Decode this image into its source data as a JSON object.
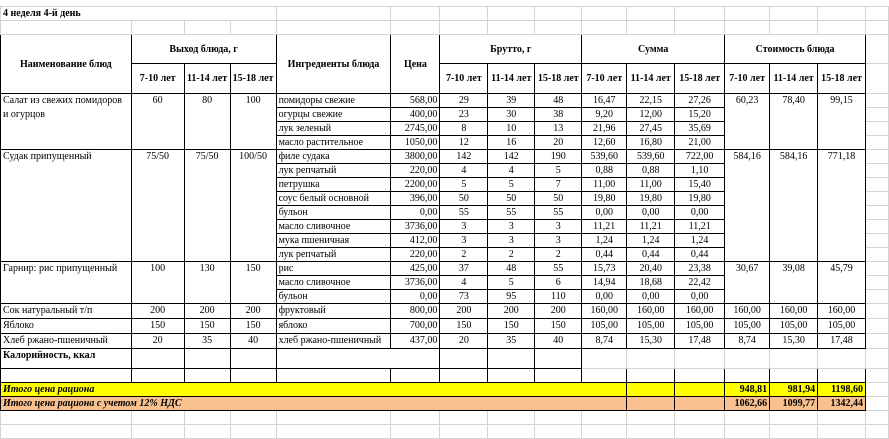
{
  "sheet_title": "4 неделя 4-й день",
  "headers": {
    "dish_name": "Наименование блюд",
    "yield": "Выход блюда, г",
    "ingredients": "Ингредиенты блюда",
    "price": "Цена",
    "brutto": "Брутто, г",
    "sum": "Сумма",
    "cost": "Стоимость блюда",
    "ages": [
      "7-10 лет",
      "11-14 лет",
      "15-18 лет"
    ]
  },
  "dishes": [
    {
      "name": "Салат из свежих помидоров и огурцов",
      "yield": [
        "60",
        "80",
        "100"
      ],
      "cost": [
        "60,23",
        "78,40",
        "99,15"
      ],
      "ingredients": [
        {
          "name": "помидоры свежие",
          "price": "568,00",
          "brutto": [
            "29",
            "39",
            "48"
          ],
          "sum": [
            "16,47",
            "22,15",
            "27,26"
          ]
        },
        {
          "name": "огурцы свежие",
          "price": "400,00",
          "brutto": [
            "23",
            "30",
            "38"
          ],
          "sum": [
            "9,20",
            "12,00",
            "15,20"
          ]
        },
        {
          "name": "лук зеленый",
          "price": "2745,00",
          "brutto": [
            "8",
            "10",
            "13"
          ],
          "sum": [
            "21,96",
            "27,45",
            "35,69"
          ]
        },
        {
          "name": "масло растительное",
          "price": "1050,00",
          "brutto": [
            "12",
            "16",
            "20"
          ],
          "sum": [
            "12,60",
            "16,80",
            "21,00"
          ]
        }
      ]
    },
    {
      "name": "Судак припущенный",
      "yield": [
        "75/50",
        "75/50",
        "100/50"
      ],
      "cost": [
        "584,16",
        "584,16",
        "771,18"
      ],
      "ingredients": [
        {
          "name": "филе судака",
          "price": "3800,00",
          "brutto": [
            "142",
            "142",
            "190"
          ],
          "sum": [
            "539,60",
            "539,60",
            "722,00"
          ]
        },
        {
          "name": "лук репчатый",
          "price": "220,00",
          "brutto": [
            "4",
            "4",
            "5"
          ],
          "sum": [
            "0,88",
            "0,88",
            "1,10"
          ]
        },
        {
          "name": "петрушка",
          "price": "2200,00",
          "brutto": [
            "5",
            "5",
            "7"
          ],
          "sum": [
            "11,00",
            "11,00",
            "15,40"
          ]
        },
        {
          "name": "соус белый основной",
          "price": "396,00",
          "brutto": [
            "50",
            "50",
            "50"
          ],
          "sum": [
            "19,80",
            "19,80",
            "19,80"
          ]
        },
        {
          "name": "бульон",
          "price": "0,00",
          "brutto": [
            "55",
            "55",
            "55"
          ],
          "sum": [
            "0,00",
            "0,00",
            "0,00"
          ]
        },
        {
          "name": "масло сливочное",
          "price": "3736,00",
          "brutto": [
            "3",
            "3",
            "3"
          ],
          "sum": [
            "11,21",
            "11,21",
            "11,21"
          ]
        },
        {
          "name": "мука пшеничная",
          "price": "412,00",
          "brutto": [
            "3",
            "3",
            "3"
          ],
          "sum": [
            "1,24",
            "1,24",
            "1,24"
          ]
        },
        {
          "name": "лук репчатый",
          "price": "220,00",
          "brutto": [
            "2",
            "2",
            "2"
          ],
          "sum": [
            "0,44",
            "0,44",
            "0,44"
          ]
        }
      ]
    },
    {
      "name": "Гарнир: рис припущенный",
      "yield": [
        "100",
        "130",
        "150"
      ],
      "cost": [
        "30,67",
        "39,08",
        "45,79"
      ],
      "ingredients": [
        {
          "name": "рис",
          "price": "425,00",
          "brutto": [
            "37",
            "48",
            "55"
          ],
          "sum": [
            "15,73",
            "20,40",
            "23,38"
          ]
        },
        {
          "name": "масло сливочное",
          "price": "3736,00",
          "brutto": [
            "4",
            "5",
            "6"
          ],
          "sum": [
            "14,94",
            "18,68",
            "22,42"
          ]
        },
        {
          "name": "бульон",
          "price": "0,00",
          "brutto": [
            "73",
            "95",
            "110"
          ],
          "sum": [
            "0,00",
            "0,00",
            "0,00"
          ]
        }
      ]
    },
    {
      "name": "Сок натуральный т/п",
      "yield": [
        "200",
        "200",
        "200"
      ],
      "cost": [
        "160,00",
        "160,00",
        "160,00"
      ],
      "ingredients": [
        {
          "name": "фруктовый",
          "price": "800,00",
          "brutto": [
            "200",
            "200",
            "200"
          ],
          "sum": [
            "160,00",
            "160,00",
            "160,00"
          ]
        }
      ]
    },
    {
      "name": "Яблоко",
      "yield": [
        "150",
        "150",
        "150"
      ],
      "cost": [
        "105,00",
        "105,00",
        "105,00"
      ],
      "ingredients": [
        {
          "name": "яблоко",
          "price": "700,00",
          "brutto": [
            "150",
            "150",
            "150"
          ],
          "sum": [
            "105,00",
            "105,00",
            "105,00"
          ]
        }
      ]
    },
    {
      "name": "Хлеб ржано-пшеничный",
      "yield": [
        "20",
        "35",
        "40"
      ],
      "cost": [
        "8,74",
        "15,30",
        "17,48"
      ],
      "ingredients": [
        {
          "name": "хлеб ржано-пшеничный",
          "price": "437,00",
          "brutto": [
            "20",
            "35",
            "40"
          ],
          "sum": [
            "8,74",
            "15,30",
            "17,48"
          ]
        }
      ]
    }
  ],
  "calories_label": "Калорийность, ккал",
  "total": {
    "label": "Итого цена рациона",
    "values": [
      "948,81",
      "981,94",
      "1198,60"
    ],
    "color": "#ffff00"
  },
  "total_vat": {
    "label": "Итого цена рациона с учетом 12% НДС",
    "values": [
      "1062,66",
      "1099,77",
      "1342,44"
    ],
    "color": "#f8bf8f"
  }
}
